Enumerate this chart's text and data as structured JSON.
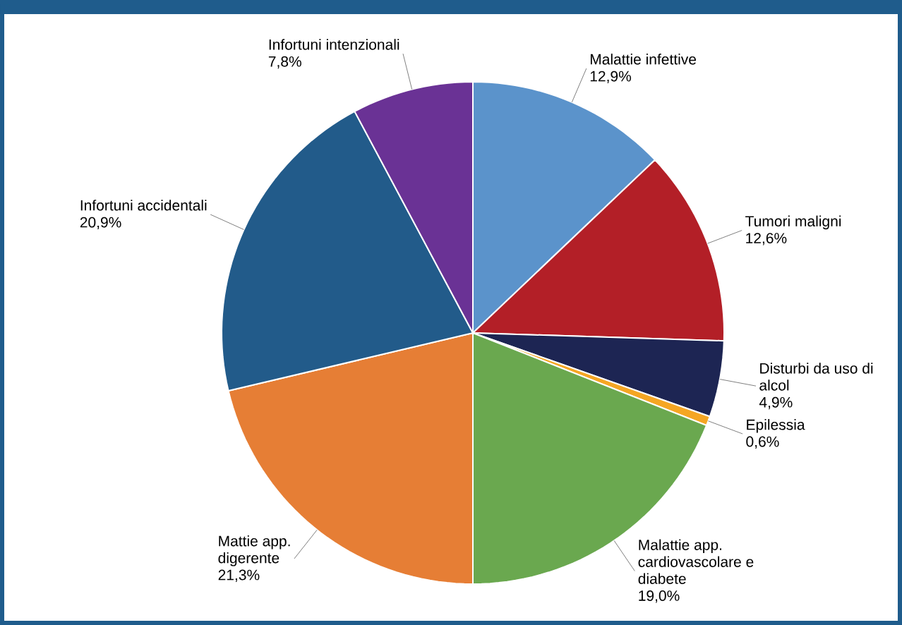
{
  "chart_data": {
    "type": "pie",
    "categories": [
      "Malattie infettive",
      "Tumori maligni",
      "Disturbi da uso di alcol",
      "Epilessia",
      "Malattie app. cardiovascolare e diabete",
      "Mattie app. digerente",
      "Infortuni accidentali",
      "Infortuni intenzionali"
    ],
    "values": [
      12.9,
      12.6,
      4.9,
      0.6,
      19.0,
      21.3,
      20.9,
      7.8
    ],
    "colors": [
      "#5b93cb",
      "#b31f27",
      "#1d2553",
      "#f5a623",
      "#6aa84f",
      "#e67e35",
      "#225b8a",
      "#6a3295"
    ],
    "value_labels": [
      "12,9%",
      "12,6%",
      "4,9%",
      "0,6%",
      "19,0%",
      "21,3%",
      "20,9%",
      "7,8%"
    ]
  }
}
